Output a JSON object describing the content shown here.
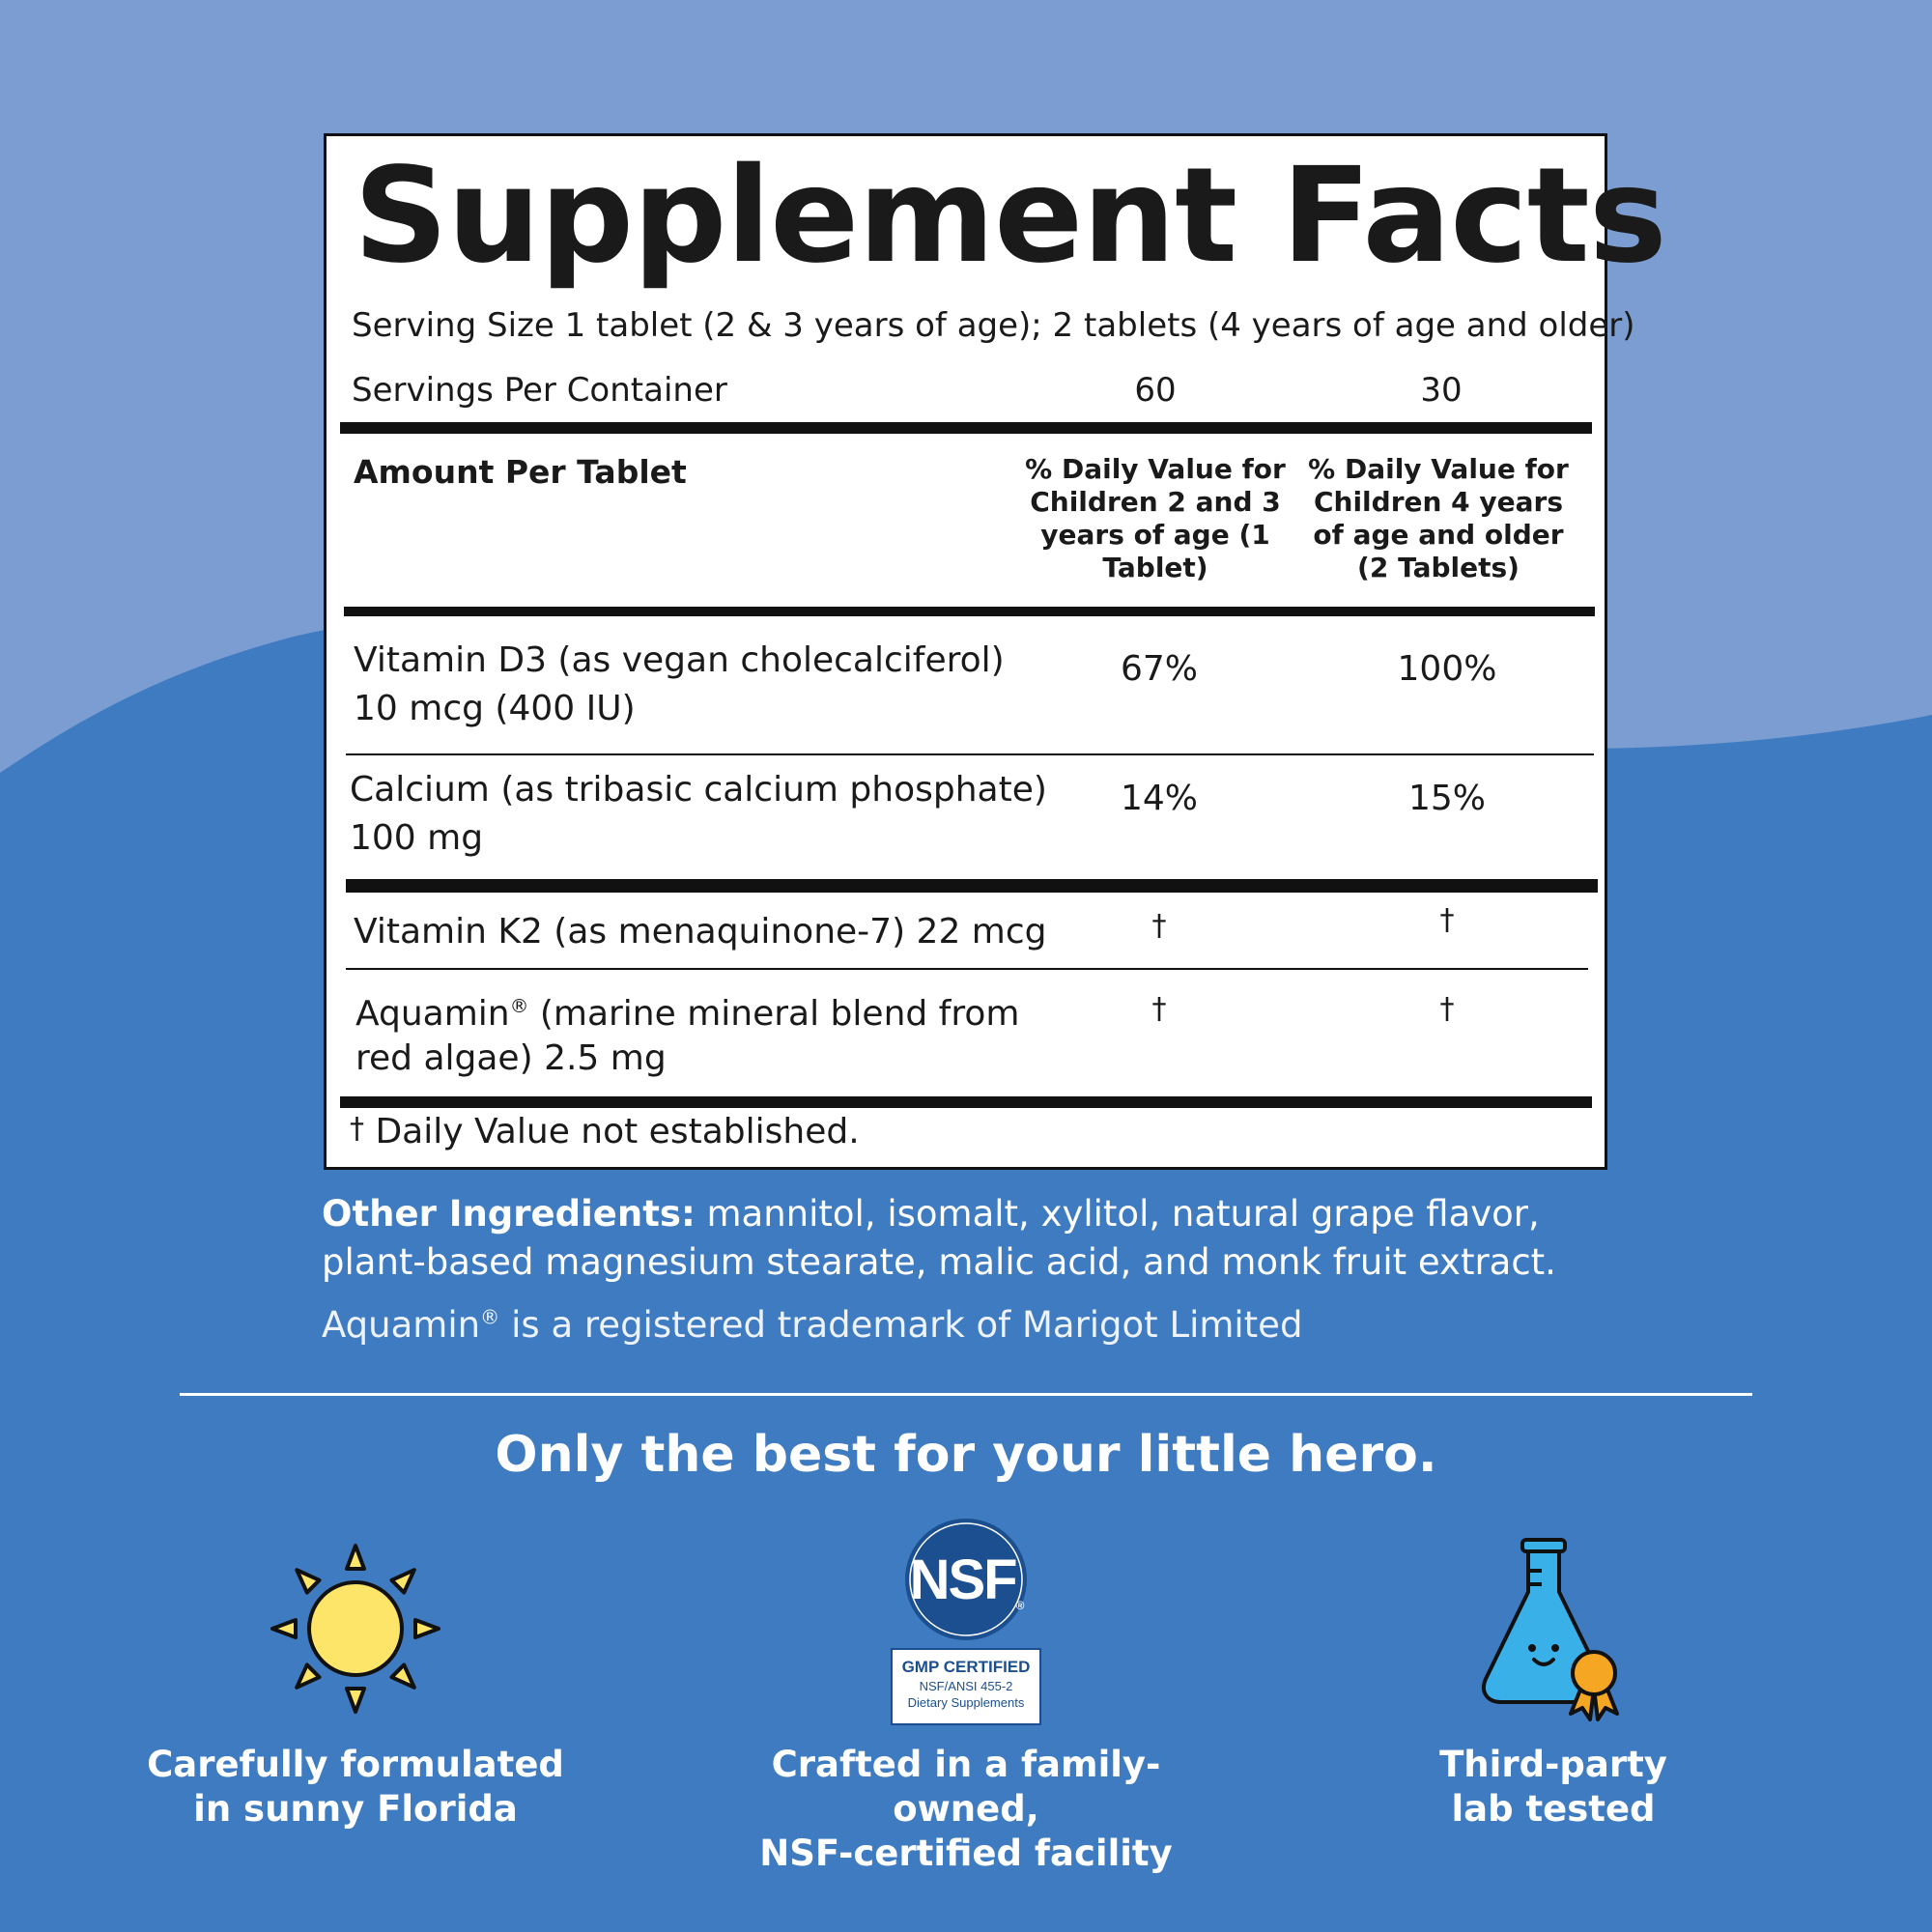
{
  "panel": {
    "title": "Supplement Facts",
    "serving_size": "Serving Size 1 tablet (2 & 3 years of age); 2 tablets (4 years of age and older)",
    "servings_per_container_label": "Servings Per Container",
    "servings_per_container": [
      "60",
      "30"
    ],
    "amount_header": "Amount Per Tablet",
    "dv_headers": [
      "% Daily Value for Children 2 and 3 years of age (1 Tablet)",
      "% Daily Value for Children 4 years of age and older (2 Tablets)"
    ],
    "nutrients": [
      {
        "line1": "Vitamin D3 (as vegan cholecalciferol)",
        "line2": "10 mcg (400 IU)",
        "dv1": "67%",
        "dv2": "100%"
      },
      {
        "line1": "Calcium (as tribasic calcium phosphate)",
        "line2": "100 mg",
        "dv1": "14%",
        "dv2": "15%"
      },
      {
        "line1": "Vitamin K2 (as menaquinone-7) 22 mcg",
        "dv1": "†",
        "dv2": "†"
      },
      {
        "line1_a": "Aquamin",
        "line1_reg": "®",
        "line1_b": " (marine mineral blend from",
        "line2": "red algae) 2.5 mg",
        "dv1": "†",
        "dv2": "†"
      }
    ],
    "footnote_mark": "†",
    "footnote": " Daily Value not established."
  },
  "other_ingredients": {
    "label": "Other Ingredients:",
    "line1": " mannitol, isomalt, xylitol, natural grape flavor,",
    "line2": "plant-based magnesium stearate, malic acid, and monk fruit extract."
  },
  "trademark": {
    "name": "Aquamin",
    "reg": "®",
    "rest": " is a registered trademark of Marigot Limited"
  },
  "tagline": "Only the best for your little hero.",
  "features": [
    {
      "icon": "sun-icon",
      "line1": "Carefully formulated",
      "line2": "in sunny Florida"
    },
    {
      "icon": "nsf-badge-icon",
      "line1": "Crafted in a family-owned,",
      "line2": "NSF-certified facility"
    },
    {
      "icon": "lab-flask-icon",
      "line1": "Third-party",
      "line2": "lab tested"
    }
  ],
  "nsf_badge": {
    "logo": "NSF",
    "reg": "®",
    "cert_line1": "GMP CERTIFIED",
    "cert_line2": "NSF/ANSI 455-2",
    "cert_line3": "Dietary Supplements"
  },
  "colors": {
    "background_light": "#7b9dd2",
    "background_dark": "#3f7bc0",
    "sun": "#fde56a",
    "nsf_blue": "#1b4f8f",
    "flask": "#3ab0e8",
    "medal": "#f5a623"
  }
}
